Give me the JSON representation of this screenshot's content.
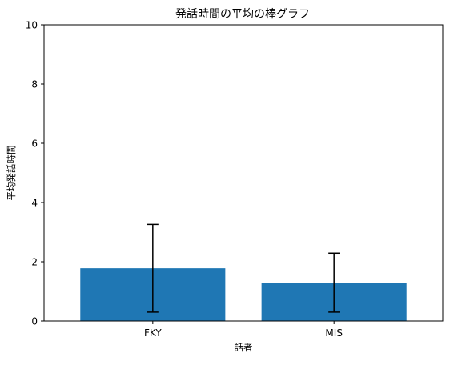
{
  "chart_data": {
    "type": "bar",
    "title": "発話時間の平均の棒グラフ",
    "xlabel": "話者",
    "ylabel": "平均発話時間",
    "categories": [
      "FKY",
      "MIS"
    ],
    "values": [
      1.78,
      1.29
    ],
    "error_lower": [
      0.3,
      0.3
    ],
    "error_upper": [
      3.26,
      2.29
    ],
    "ylim": [
      0,
      10
    ],
    "yticks": [
      0,
      2,
      4,
      6,
      8,
      10
    ],
    "grid": false,
    "legend": "none",
    "colors": {
      "bar": "#1f77b4",
      "errorbar": "#000000",
      "axis": "#000000",
      "background": "#ffffff"
    }
  }
}
